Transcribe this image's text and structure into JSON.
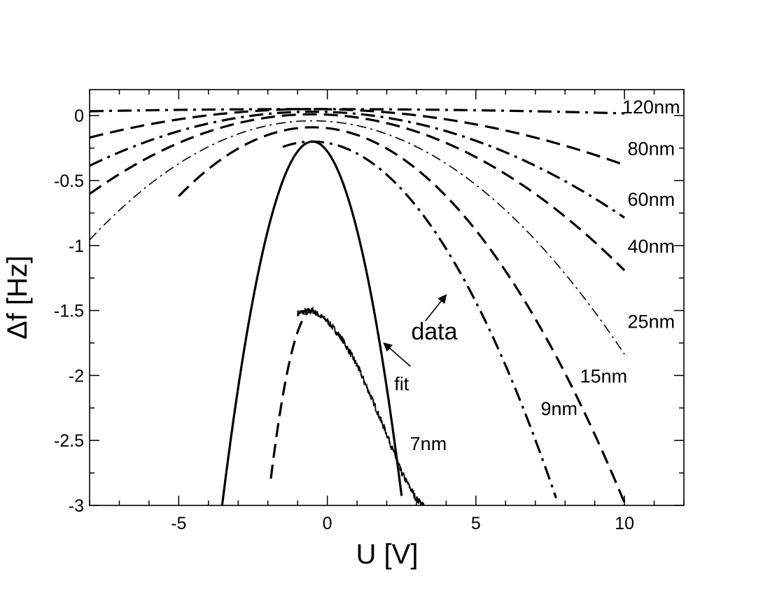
{
  "chart_data": {
    "type": "line",
    "xlabel": "U [V]",
    "ylabel": "Δf [Hz]",
    "xlim": [
      -8,
      12
    ],
    "ylim": [
      -3,
      0.2
    ],
    "xticks": [
      -5,
      0,
      5,
      10
    ],
    "xtick_labels": [
      "-5",
      "0",
      "5",
      "10"
    ],
    "yticks": [
      0,
      -0.5,
      -1,
      -1.5,
      -2,
      -2.5,
      -3
    ],
    "ytick_labels": [
      "0",
      "-0.5",
      "-1",
      "-1.5",
      "-2",
      "-2.5",
      "-3"
    ],
    "grid": false,
    "series": [
      {
        "name": "120nm",
        "style": "dashdot",
        "vertex_x": -0.5,
        "vertex_y": 0.05,
        "curvature": 0.0003,
        "x_range": [
          -8,
          10
        ]
      },
      {
        "name": "80nm",
        "style": "dashed",
        "vertex_x": -0.5,
        "vertex_y": 0.05,
        "curvature": 0.0039,
        "x_range": [
          -8,
          10
        ]
      },
      {
        "name": "60nm",
        "style": "dashdot",
        "vertex_x": -0.5,
        "vertex_y": 0.03,
        "curvature": 0.0074,
        "x_range": [
          -8,
          10
        ]
      },
      {
        "name": "40nm",
        "style": "dashed",
        "vertex_x": -0.5,
        "vertex_y": 0.01,
        "curvature": 0.0109,
        "x_range": [
          -8,
          10
        ]
      },
      {
        "name": "25nm",
        "style": "thin-dashdot",
        "vertex_x": -0.5,
        "vertex_y": -0.04,
        "curvature": 0.0163,
        "x_range": [
          -8,
          10
        ]
      },
      {
        "name": "15nm",
        "style": "dashed",
        "vertex_x": -0.5,
        "vertex_y": -0.09,
        "curvature": 0.0262,
        "x_range": [
          -5,
          10
        ]
      },
      {
        "name": "9nm",
        "style": "dashdot",
        "vertex_x": -0.5,
        "vertex_y": -0.2,
        "curvature": 0.0408,
        "x_range": [
          -1.5,
          7.7
        ]
      },
      {
        "name": "fit",
        "style": "solid",
        "vertex_x": -0.5,
        "vertex_y": -0.2,
        "curvature": 0.303,
        "x_range": [
          -3.6,
          2.5
        ]
      },
      {
        "name": "7nm",
        "style": "dashed",
        "vertex_x": -0.5,
        "vertex_y": -1.5,
        "curvature": 0.66,
        "x_range": [
          -1.9,
          -0.5
        ]
      }
    ],
    "measured_data": {
      "name": "data",
      "style": "noisy-solid",
      "points": [
        [
          -1.0,
          -1.52
        ],
        [
          -0.5,
          -1.5
        ],
        [
          0.0,
          -1.58
        ],
        [
          0.5,
          -1.72
        ],
        [
          1.0,
          -1.92
        ],
        [
          1.5,
          -2.18
        ],
        [
          2.0,
          -2.45
        ],
        [
          2.5,
          -2.75
        ],
        [
          3.0,
          -2.95
        ],
        [
          3.25,
          -3.0
        ]
      ]
    },
    "annotations": [
      {
        "text": "120nm",
        "x": 10.9,
        "y": 0.07
      },
      {
        "text": "80nm",
        "x": 10.9,
        "y": -0.25
      },
      {
        "text": "60nm",
        "x": 10.9,
        "y": -0.64
      },
      {
        "text": "40nm",
        "x": 10.9,
        "y": -1.0
      },
      {
        "text": "25nm",
        "x": 10.9,
        "y": -1.58
      },
      {
        "text": "15nm",
        "x": 9.3,
        "y": -2.0
      },
      {
        "text": "9nm",
        "x": 7.8,
        "y": -2.25
      },
      {
        "text": "7nm",
        "x": 3.4,
        "y": -2.52
      },
      {
        "text": "fit",
        "x": 2.5,
        "y": -2.06
      },
      {
        "text": "data",
        "x": 3.6,
        "y": -1.67
      }
    ],
    "arrows": [
      {
        "from": [
          2.8,
          -1.93
        ],
        "to": [
          1.9,
          -1.75
        ]
      },
      {
        "from": [
          3.3,
          -1.58
        ],
        "to": [
          4.0,
          -1.38
        ]
      }
    ]
  }
}
